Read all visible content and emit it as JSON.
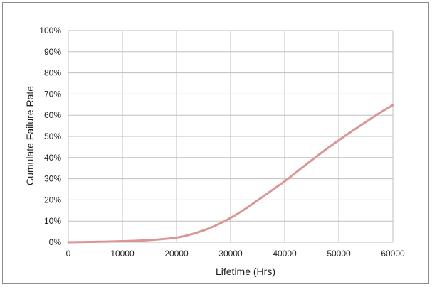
{
  "chart_data": {
    "type": "line",
    "title": "",
    "xlabel": "Lifetime (Hrs)",
    "ylabel": "Cumulate Failure Rate",
    "xlim": [
      0,
      60000
    ],
    "ylim": [
      0,
      100
    ],
    "grid": true,
    "legend": "none",
    "x_ticks": [
      "0",
      "10000",
      "20000",
      "30000",
      "40000",
      "50000",
      "60000"
    ],
    "y_ticks": [
      "0%",
      "10%",
      "20%",
      "30%",
      "40%",
      "50%",
      "60%",
      "70%",
      "80%",
      "90%",
      "100%"
    ],
    "series": [
      {
        "color": "#d99694",
        "x": [
          0,
          5000,
          10000,
          15000,
          20000,
          22500,
          25000,
          27500,
          30000,
          32500,
          35000,
          37500,
          40000,
          42500,
          45000,
          47500,
          50000,
          52500,
          55000,
          57500,
          60000
        ],
        "y": [
          0,
          0.2,
          0.5,
          1.0,
          2.2,
          3.6,
          5.6,
          8.2,
          11.5,
          15.4,
          19.8,
          24.3,
          28.8,
          33.8,
          38.8,
          43.6,
          48.2,
          52.6,
          56.8,
          61.0,
          64.8
        ]
      }
    ]
  },
  "colors": {
    "grid": "#bfbfbf",
    "frame": "#8c8c8c",
    "line": "#d99694"
  }
}
